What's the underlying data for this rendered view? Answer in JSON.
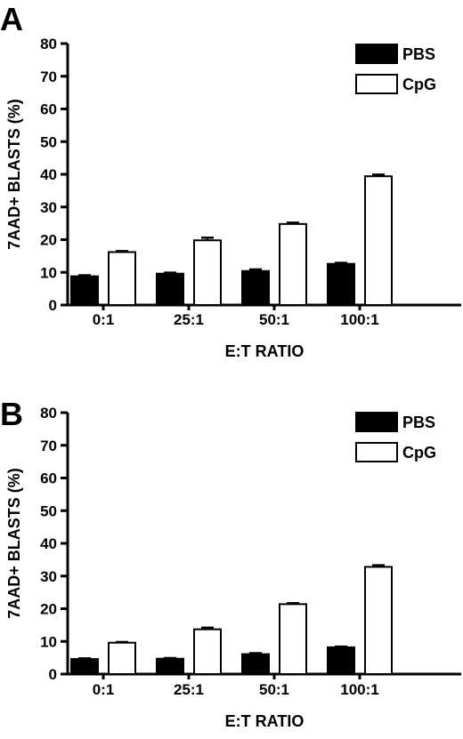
{
  "chart_data": [
    {
      "panel": "A",
      "type": "bar",
      "categories": [
        "0:1",
        "25:1",
        "50:1",
        "100:1"
      ],
      "series": [
        {
          "name": "PBS",
          "values": [
            8.8,
            9.6,
            10.4,
            12.6
          ],
          "errors": [
            0.3,
            0.3,
            0.5,
            0.3
          ],
          "fill": "#000000"
        },
        {
          "name": "CpG",
          "values": [
            16.2,
            19.8,
            24.8,
            39.4
          ],
          "errors": [
            0.3,
            0.8,
            0.4,
            0.5
          ],
          "fill": "#ffffff"
        }
      ],
      "xlabel": "E:T RATIO",
      "ylabel": "7AAD+ BLASTS (%)",
      "ylim": [
        0,
        80
      ],
      "yticks": [
        "0",
        "10",
        "20",
        "30",
        "40",
        "50",
        "60",
        "70",
        "80"
      ],
      "legend_position": "top-right",
      "grid": false
    },
    {
      "panel": "B",
      "type": "bar",
      "categories": [
        "0:1",
        "25:1",
        "50:1",
        "100:1"
      ],
      "series": [
        {
          "name": "PBS",
          "values": [
            4.6,
            4.7,
            6.1,
            8.2
          ],
          "errors": [
            0.2,
            0.2,
            0.3,
            0.2
          ],
          "fill": "#000000"
        },
        {
          "name": "CpG",
          "values": [
            9.6,
            13.7,
            21.4,
            32.8
          ],
          "errors": [
            0.2,
            0.5,
            0.3,
            0.5
          ],
          "fill": "#ffffff"
        }
      ],
      "xlabel": "E:T RATIO",
      "ylabel": "7AAD+ BLASTS (%)",
      "ylim": [
        0,
        80
      ],
      "yticks": [
        "0",
        "10",
        "20",
        "30",
        "40",
        "50",
        "60",
        "70",
        "80"
      ],
      "legend_position": "top-right",
      "grid": false
    }
  ]
}
